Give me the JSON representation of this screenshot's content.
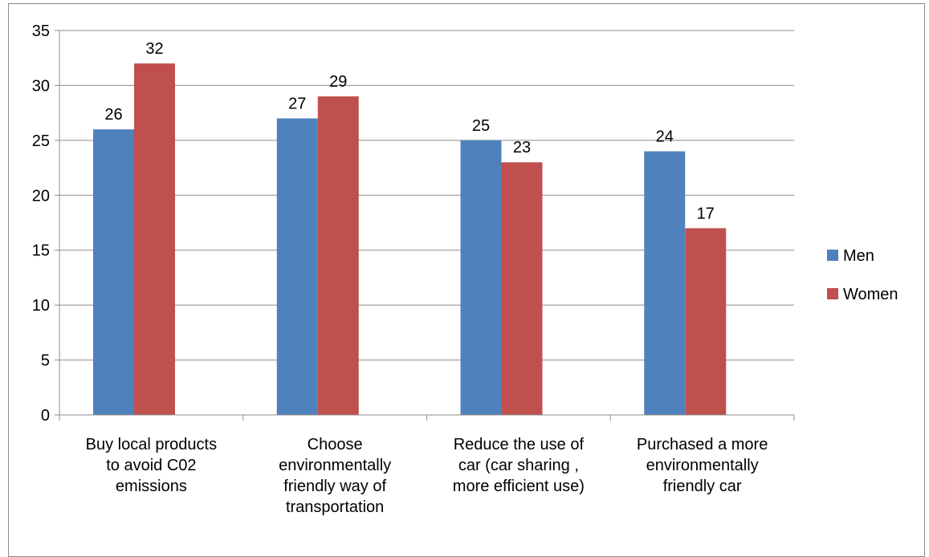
{
  "chart_data": {
    "type": "bar",
    "categories": [
      [
        "Buy local products",
        "to avoid C02",
        "emissions"
      ],
      [
        "Choose",
        "environmentally",
        "friendly way of",
        "transportation"
      ],
      [
        "Reduce the use of",
        "car (car sharing ,",
        "more efficient use)"
      ],
      [
        "Purchased a more",
        "environmentally",
        "friendly car"
      ]
    ],
    "series": [
      {
        "name": "Men",
        "color": "#4f81bd",
        "values": [
          26,
          27,
          25,
          24
        ]
      },
      {
        "name": "Women",
        "color": "#c0504d",
        "values": [
          32,
          29,
          23,
          17
        ]
      }
    ],
    "ylim": [
      0,
      35
    ],
    "yticks": [
      0,
      5,
      10,
      15,
      20,
      25,
      30,
      35
    ],
    "grid": true,
    "legend_position": "right",
    "data_labels": true
  }
}
